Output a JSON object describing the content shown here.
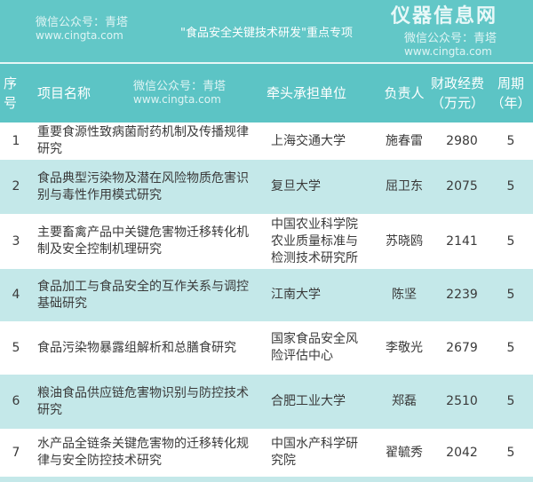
{
  "title": "\"食品安全关键技术研发\"重点专项",
  "headers": {
    "no": "序号",
    "name": "项目名称",
    "unit": "牵头承担单位",
    "leader": "负责人",
    "funds": "财政经费（万元）",
    "period": "周期（年）"
  },
  "rows": [
    {
      "no": "1",
      "name": "重要食源性致病菌耐药机制及传播规律研究",
      "unit": "上海交通大学",
      "leader": "施春雷",
      "funds": "2980",
      "period": "5"
    },
    {
      "no": "2",
      "name": "食品典型污染物及潜在风险物质危害识别与毒性作用模式研究",
      "unit": "复旦大学",
      "leader": "屈卫东",
      "funds": "2075",
      "period": "5"
    },
    {
      "no": "3",
      "name": "主要畜禽产品中关键危害物迁移转化机制及安全控制机理研究",
      "unit": "中国农业科学院农业质量标准与检测技术研究所",
      "leader": "苏晓鸥",
      "funds": "2141",
      "period": "5"
    },
    {
      "no": "4",
      "name": "食品加工与食品安全的互作关系与调控基础研究",
      "unit": "江南大学",
      "leader": "陈坚",
      "funds": "2239",
      "period": "5"
    },
    {
      "no": "5",
      "name": "食品污染物暴露组解析和总膳食研究",
      "unit": "国家食品安全风险评估中心",
      "leader": "李敬光",
      "funds": "2679",
      "period": "5"
    },
    {
      "no": "6",
      "name": "粮油食品供应链危害物识别与防控技术研究",
      "unit": "合肥工业大学",
      "leader": "郑磊",
      "funds": "2510",
      "period": "5"
    },
    {
      "no": "7",
      "name": "水产品全链条关键危害物的迁移转化规律与安全防控技术研究",
      "unit": "中国水产科学研究院",
      "leader": "翟毓秀",
      "funds": "2042",
      "period": "5"
    }
  ],
  "watermark": {
    "text": "微信公众号：青塔",
    "url": "www.cingta.com",
    "logo": "仪器信息网"
  },
  "colors": {
    "header": "#5cc4c5",
    "alt_row": "#c4e8e9"
  }
}
